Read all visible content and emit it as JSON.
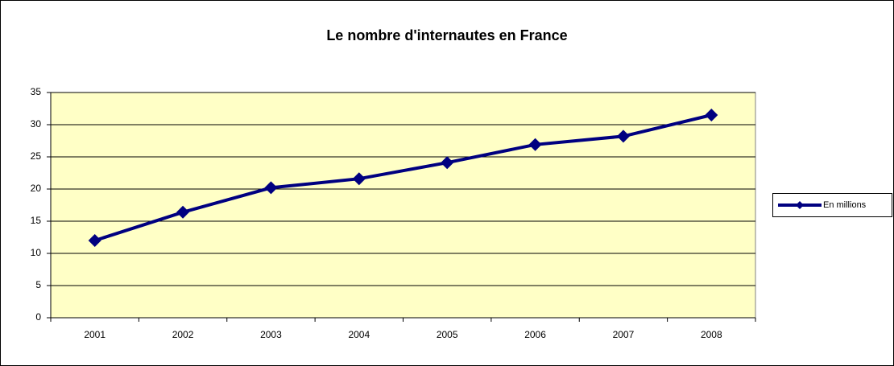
{
  "chart_data": {
    "type": "line",
    "title": "Le nombre d'internautes en France",
    "categories": [
      "2001",
      "2002",
      "2003",
      "2004",
      "2005",
      "2006",
      "2007",
      "2008"
    ],
    "series": [
      {
        "name": "En millions",
        "color": "#000080",
        "values": [
          12,
          16.4,
          20.2,
          21.6,
          24.1,
          26.9,
          28.2,
          31.5
        ]
      }
    ],
    "ylim": [
      0,
      35
    ],
    "yticks": [
      0,
      5,
      10,
      15,
      20,
      25,
      30,
      35
    ],
    "grid": true,
    "legend": "right"
  }
}
